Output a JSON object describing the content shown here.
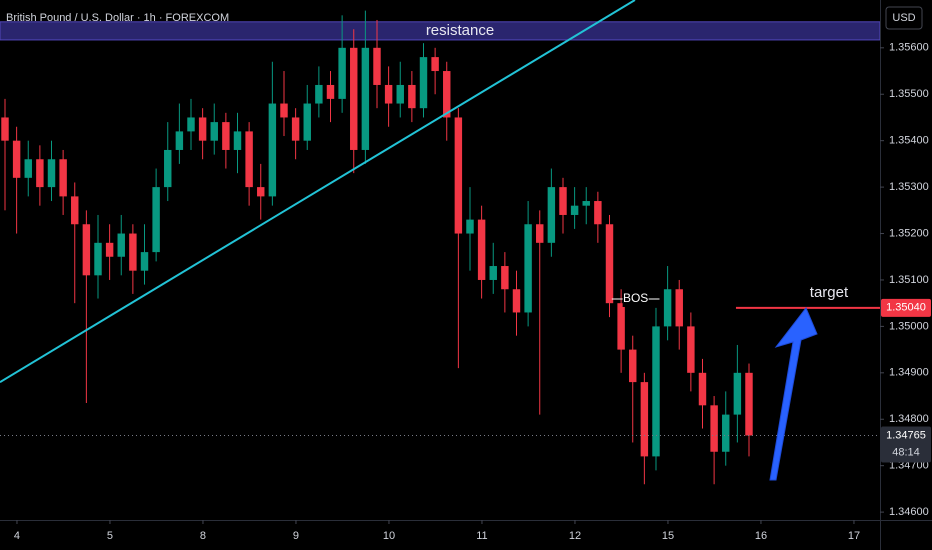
{
  "chart_data": {
    "type": "candlestick",
    "title": "British Pound / U.S. Dollar · 1h · FOREXCOM",
    "currency": "USD",
    "up_color": "#089981",
    "down_color": "#f23645",
    "open": [
      1.3545,
      1.354,
      1.3532,
      1.3536,
      1.353,
      1.3536,
      1.3528,
      1.3522,
      1.3511,
      1.3518,
      1.3515,
      1.352,
      1.3512,
      1.3516,
      1.353,
      1.3538,
      1.3542,
      1.3545,
      1.354,
      1.3544,
      1.3538,
      1.3542,
      1.353,
      1.3528,
      1.3548,
      1.3545,
      1.354,
      1.3548,
      1.3552,
      1.3549,
      1.356,
      1.3538,
      1.356,
      1.3552,
      1.3548,
      1.3552,
      1.3547,
      1.3558,
      1.3555,
      1.3545,
      1.352,
      1.3523,
      1.351,
      1.3513,
      1.3508,
      1.3503,
      1.3522,
      1.3518,
      1.353,
      1.3524,
      1.3526,
      1.3527,
      1.3522,
      1.3505,
      1.3495,
      1.3488,
      1.3472,
      1.35,
      1.3508,
      1.35,
      1.349,
      1.3483,
      1.3473,
      1.3481,
      1.349
    ],
    "high": [
      1.3549,
      1.3543,
      1.354,
      1.3539,
      1.354,
      1.3538,
      1.3531,
      1.3525,
      1.3524,
      1.3522,
      1.3524,
      1.3522,
      1.3522,
      1.3534,
      1.3544,
      1.3548,
      1.3549,
      1.3547,
      1.3548,
      1.3546,
      1.3546,
      1.3544,
      1.3535,
      1.3557,
      1.3555,
      1.3547,
      1.3552,
      1.3556,
      1.3555,
      1.3567,
      1.3564,
      1.3568,
      1.3566,
      1.3556,
      1.3557,
      1.3555,
      1.3561,
      1.356,
      1.3557,
      1.3547,
      1.353,
      1.3526,
      1.3518,
      1.3516,
      1.3512,
      1.3527,
      1.3525,
      1.3534,
      1.3532,
      1.353,
      1.353,
      1.3529,
      1.3524,
      1.3508,
      1.3498,
      1.349,
      1.3504,
      1.3513,
      1.351,
      1.3503,
      1.3493,
      1.3485,
      1.3486,
      1.3496,
      1.3492
    ],
    "low": [
      1.3525,
      1.352,
      1.3528,
      1.3526,
      1.3527,
      1.3524,
      1.3505,
      1.34835,
      1.3506,
      1.351,
      1.3511,
      1.3507,
      1.3509,
      1.3514,
      1.3527,
      1.3535,
      1.3538,
      1.3536,
      1.3537,
      1.3534,
      1.3533,
      1.3526,
      1.3523,
      1.3526,
      1.3541,
      1.3536,
      1.3538,
      1.3545,
      1.3544,
      1.3546,
      1.3533,
      1.3535,
      1.3547,
      1.3543,
      1.3545,
      1.3544,
      1.3545,
      1.355,
      1.354,
      1.3491,
      1.3512,
      1.3506,
      1.3507,
      1.3503,
      1.3498,
      1.35,
      1.3481,
      1.3515,
      1.352,
      1.3521,
      1.3522,
      1.3518,
      1.3502,
      1.349,
      1.3475,
      1.3466,
      1.3469,
      1.3497,
      1.3495,
      1.3486,
      1.3478,
      1.3466,
      1.347,
      1.3475,
      1.3472
    ],
    "close": [
      1.354,
      1.3532,
      1.3536,
      1.353,
      1.3536,
      1.3528,
      1.3522,
      1.3511,
      1.3518,
      1.3515,
      1.352,
      1.3512,
      1.3516,
      1.353,
      1.3538,
      1.3542,
      1.3545,
      1.354,
      1.3544,
      1.3538,
      1.3542,
      1.353,
      1.3528,
      1.3548,
      1.3545,
      1.354,
      1.3548,
      1.3552,
      1.3549,
      1.356,
      1.3538,
      1.356,
      1.3552,
      1.3548,
      1.3552,
      1.3547,
      1.3558,
      1.3555,
      1.3545,
      1.352,
      1.3523,
      1.351,
      1.3513,
      1.3508,
      1.3503,
      1.3522,
      1.3518,
      1.353,
      1.3524,
      1.3526,
      1.3527,
      1.3522,
      1.3505,
      1.3495,
      1.3488,
      1.3472,
      1.35,
      1.3508,
      1.35,
      1.349,
      1.3483,
      1.3473,
      1.3481,
      1.349,
      1.34765
    ],
    "xlim": [
      -0.43,
      75.27
    ],
    "xticks": [
      {
        "value": 1.03,
        "label": "4"
      },
      {
        "value": 9.03,
        "label": "5"
      },
      {
        "value": 17.03,
        "label": "8"
      },
      {
        "value": 25.03,
        "label": "9"
      },
      {
        "value": 33.03,
        "label": "10"
      },
      {
        "value": 41.03,
        "label": "11"
      },
      {
        "value": 49.03,
        "label": "12"
      },
      {
        "value": 57.03,
        "label": "15"
      },
      {
        "value": 65.03,
        "label": "16"
      },
      {
        "value": 73.03,
        "label": "17"
      }
    ],
    "ylim": [
      1.34583,
      1.35703
    ],
    "yticks": [
      {
        "value": 1.346,
        "label": "1.34600"
      },
      {
        "value": 1.347,
        "label": "1.34700"
      },
      {
        "value": 1.348,
        "label": "1.34800"
      },
      {
        "value": 1.349,
        "label": "1.34900"
      },
      {
        "value": 1.35,
        "label": "1.35000"
      },
      {
        "value": 1.351,
        "label": "1.35100"
      },
      {
        "value": 1.352,
        "label": "1.35200"
      },
      {
        "value": 1.353,
        "label": "1.35300"
      },
      {
        "value": 1.354,
        "label": "1.35400"
      },
      {
        "value": 1.355,
        "label": "1.35500"
      },
      {
        "value": 1.356,
        "label": "1.35600"
      }
    ],
    "annotations": {
      "resistance": {
        "label": "resistance",
        "range": [
          1.35617,
          1.35656
        ],
        "color": "#2f2a7a"
      },
      "trendline": {
        "x": [
          -0.43,
          54.19
        ],
        "y": [
          1.3488,
          1.35703
        ],
        "color": "#22c3d6"
      },
      "bos": {
        "label": "BOS",
        "x": [
          52.2,
          56.3
        ],
        "y": 1.35059
      },
      "target": {
        "label": "target",
        "x": [
          62.88,
          75.27
        ],
        "value": 1.3504,
        "value_label": "1.35040",
        "color": "#f23645"
      },
      "last_price": {
        "value": 1.34765,
        "countdown": "48:14"
      }
    }
  }
}
